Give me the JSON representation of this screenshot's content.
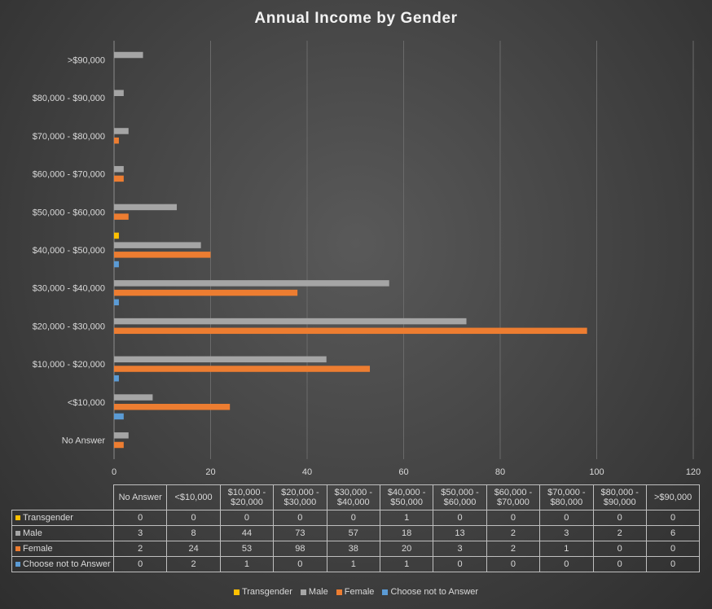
{
  "chart_data": {
    "type": "bar",
    "orientation": "horizontal",
    "title": "Annual Income by Gender",
    "categories": [
      "No Answer",
      "<$10,000",
      "$10,000 - $20,000",
      "$20,000 - $30,000",
      "$30,000 - $40,000",
      "$40,000 - $50,000",
      "$50,000 - $60,000",
      "$60,000 - $70,000",
      "$70,000 - $80,000",
      "$80,000 - $90,000",
      ">$90,000"
    ],
    "table_headers": [
      [
        "No Answer"
      ],
      [
        "<$10,000"
      ],
      [
        "$10,000 -",
        "$20,000"
      ],
      [
        "$20,000 -",
        "$30,000"
      ],
      [
        "$30,000 -",
        "$40,000"
      ],
      [
        "$40,000 -",
        "$50,000"
      ],
      [
        "$50,000 -",
        "$60,000"
      ],
      [
        "$60,000 -",
        "$70,000"
      ],
      [
        "$70,000 -",
        "$80,000"
      ],
      [
        "$80,000 -",
        "$90,000"
      ],
      [
        ">$90,000"
      ]
    ],
    "series": [
      {
        "name": "Transgender",
        "color": "#ffc000",
        "values": [
          0,
          0,
          0,
          0,
          0,
          1,
          0,
          0,
          0,
          0,
          0
        ]
      },
      {
        "name": "Male",
        "color": "#a5a5a5",
        "values": [
          3,
          8,
          44,
          73,
          57,
          18,
          13,
          2,
          3,
          2,
          6
        ]
      },
      {
        "name": "Female",
        "color": "#ed7d31",
        "values": [
          2,
          24,
          53,
          98,
          38,
          20,
          3,
          2,
          1,
          0,
          0
        ]
      },
      {
        "name": "Choose not to Answer",
        "color": "#5b9bd5",
        "values": [
          0,
          2,
          1,
          0,
          1,
          1,
          0,
          0,
          0,
          0,
          0
        ]
      }
    ],
    "xlim": [
      0,
      120
    ],
    "xticks": [
      0,
      20,
      40,
      60,
      80,
      100,
      120
    ],
    "grid": true,
    "legend_position": "bottom",
    "data_table": true
  }
}
